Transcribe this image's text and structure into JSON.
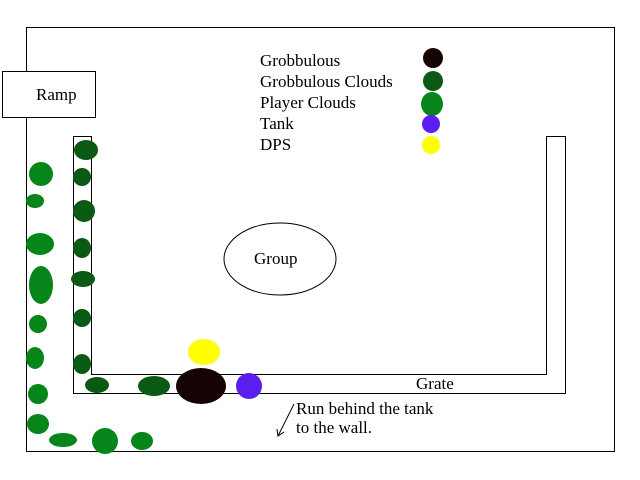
{
  "labels": {
    "ramp": "Ramp",
    "group": "Group",
    "grate": "Grate",
    "instruction_line1": "Run behind the tank",
    "instruction_line2": "to the wall."
  },
  "legend": [
    {
      "label": "Grobbulous",
      "color": "#160404"
    },
    {
      "label": "Grobbulous Clouds",
      "color": "#0b5a14"
    },
    {
      "label": "Player Clouds",
      "color": "#05851a"
    },
    {
      "label": "Tank",
      "color": "#5a1ff0"
    },
    {
      "label": "DPS",
      "color": "#ffff00"
    }
  ]
}
